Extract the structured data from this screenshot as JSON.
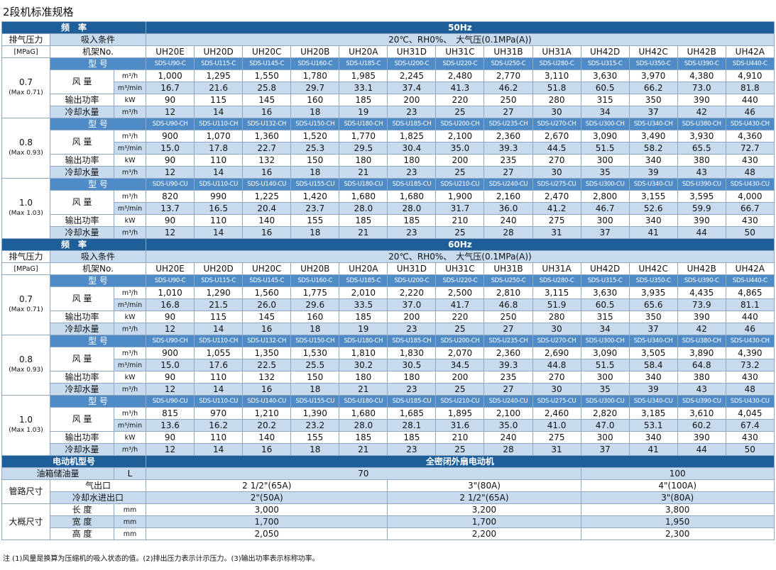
{
  "title": "2段机标准规格",
  "labels": {
    "freq": "频　率",
    "pressure": "排气压力",
    "pressure_unit": "[MPaG]",
    "intake": "吸入条件",
    "frame": "机架No.",
    "model": "型 号",
    "airflow": "风 量",
    "power": "输出功率",
    "water": "冷却水量"
  },
  "units": {
    "m3h": "m³/h",
    "m3min": "m³/min",
    "kw": "kW"
  },
  "intake": "20℃、RH0%、　大气压(0.1MPa(A))",
  "frames": [
    "UH20E",
    "UH20D",
    "UH20C",
    "UH20B",
    "UH20A",
    "UH31D",
    "UH31C",
    "UH31B",
    "UH31A",
    "UH42D",
    "UH42C",
    "UH42B",
    "UH42A"
  ],
  "pressures": [
    {
      "pressure": "0.7",
      "max": "(Max 0.71)",
      "models": [
        "SDS-U90-C",
        "SDS-U115-C",
        "SDS-U145-C",
        "SDS-U160-C",
        "SDS-U185-C",
        "SDS-U200-C",
        "SDS-U220-C",
        "SDS-U250-C",
        "SDS-U280-C",
        "SDS-U315-C",
        "SDS-U350-C",
        "SDS-U390-C",
        "SDS-U440-C"
      ]
    },
    {
      "pressure": "0.8",
      "max": "(Max 0.93)",
      "models": [
        "SDS-U90-CH",
        "SDS-U110-CH",
        "SDS-U132-CH",
        "SDS-U150-CH",
        "SDS-U180-CH",
        "SDS-U185-CH",
        "SDS-U200-CH",
        "SDS-U235-CH",
        "SDS-U270-CH",
        "SDS-U300-CH",
        "SDS-U340-CH",
        "SDS-U380-CH",
        "SDS-U430-CH"
      ]
    },
    {
      "pressure": "1.0",
      "max": "(Max 1.03)",
      "models": [
        "SDS-U90-CU",
        "SDS-U110-CU",
        "SDS-U140-CU",
        "SDS-U155-CU",
        "SDS-U180-CU",
        "SDS-U185-CU",
        "SDS-U210-CU",
        "SDS-U240-CU",
        "SDS-U275-CU",
        "SDS-U300-CU",
        "SDS-U340-CU",
        "SDS-U390-CU",
        "SDS-U430-CU"
      ]
    }
  ],
  "sections": [
    {
      "freq": "50Hz",
      "groups": [
        {
          "m3h": [
            "1,000",
            "1,295",
            "1,550",
            "1,780",
            "1,985",
            "2,245",
            "2,480",
            "2,770",
            "3,110",
            "3,630",
            "3,970",
            "4,380",
            "4,910"
          ],
          "m3min": [
            "16.7",
            "21.6",
            "25.8",
            "29.7",
            "33.1",
            "37.4",
            "41.3",
            "46.2",
            "51.8",
            "60.5",
            "66.2",
            "73.0",
            "81.8"
          ],
          "kw": [
            "90",
            "115",
            "145",
            "160",
            "185",
            "200",
            "220",
            "250",
            "280",
            "315",
            "350",
            "390",
            "440"
          ],
          "water": [
            "12",
            "14",
            "16",
            "18",
            "19",
            "23",
            "25",
            "27",
            "30",
            "34",
            "37",
            "42",
            "46"
          ]
        },
        {
          "m3h": [
            "900",
            "1,070",
            "1,360",
            "1,520",
            "1,770",
            "1,825",
            "2,100",
            "2,360",
            "2,670",
            "3,090",
            "3,490",
            "3,930",
            "4,360"
          ],
          "m3min": [
            "15.0",
            "17.8",
            "22.7",
            "25.3",
            "29.5",
            "30.4",
            "35.0",
            "39.3",
            "44.5",
            "51.5",
            "58.2",
            "65.5",
            "72.7"
          ],
          "kw": [
            "90",
            "110",
            "132",
            "150",
            "180",
            "180",
            "200",
            "235",
            "270",
            "300",
            "340",
            "380",
            "430"
          ],
          "water": [
            "12",
            "14",
            "16",
            "18",
            "21",
            "23",
            "25",
            "27",
            "30",
            "35",
            "39",
            "43",
            "48"
          ]
        },
        {
          "m3h": [
            "820",
            "990",
            "1,225",
            "1,420",
            "1,680",
            "1,680",
            "1,900",
            "2,160",
            "2,470",
            "2,800",
            "3,155",
            "3,595",
            "4,000"
          ],
          "m3min": [
            "13.7",
            "16.5",
            "20.4",
            "23.7",
            "28.0",
            "28.0",
            "31.7",
            "36.0",
            "41.2",
            "46.7",
            "52.6",
            "59.9",
            "66.7"
          ],
          "kw": [
            "90",
            "110",
            "140",
            "155",
            "185",
            "185",
            "210",
            "240",
            "275",
            "300",
            "340",
            "390",
            "430"
          ],
          "water": [
            "12",
            "14",
            "16",
            "18",
            "21",
            "23",
            "25",
            "28",
            "31",
            "37",
            "41",
            "44",
            "50"
          ]
        }
      ]
    },
    {
      "freq": "60Hz",
      "groups": [
        {
          "m3h": [
            "1,010",
            "1,290",
            "1,560",
            "1,775",
            "2,010",
            "2,220",
            "2,500",
            "2,810",
            "3,115",
            "3,630",
            "3,935",
            "4,435",
            "4,865"
          ],
          "m3min": [
            "16.8",
            "21.5",
            "26.0",
            "29.6",
            "33.5",
            "37.0",
            "41.7",
            "46.8",
            "51.9",
            "60.5",
            "65.6",
            "73.9",
            "81.1"
          ],
          "kw": [
            "90",
            "115",
            "145",
            "160",
            "185",
            "200",
            "220",
            "250",
            "280",
            "315",
            "350",
            "390",
            "440"
          ],
          "water": [
            "12",
            "14",
            "16",
            "18",
            "19",
            "23",
            "25",
            "27",
            "30",
            "34",
            "37",
            "42",
            "46"
          ]
        },
        {
          "m3h": [
            "900",
            "1,055",
            "1,350",
            "1,530",
            "1,810",
            "1,830",
            "2,070",
            "2,360",
            "2,690",
            "3,090",
            "3,505",
            "3,890",
            "4,390"
          ],
          "m3min": [
            "15.0",
            "17.6",
            "22.5",
            "25.5",
            "30.2",
            "30.5",
            "34.5",
            "39.3",
            "44.8",
            "51.5",
            "58.4",
            "64.8",
            "73.2"
          ],
          "kw": [
            "90",
            "110",
            "132",
            "150",
            "180",
            "180",
            "200",
            "235",
            "270",
            "300",
            "340",
            "380",
            "430"
          ],
          "water": [
            "12",
            "14",
            "16",
            "18",
            "21",
            "23",
            "25",
            "27",
            "30",
            "35",
            "39",
            "43",
            "48"
          ]
        },
        {
          "m3h": [
            "815",
            "970",
            "1,210",
            "1,390",
            "1,680",
            "1,685",
            "1,895",
            "2,100",
            "2,460",
            "2,820",
            "3,185",
            "3,610",
            "4,045"
          ],
          "m3min": [
            "13.6",
            "16.2",
            "20.2",
            "23.2",
            "28.0",
            "28.1",
            "31.6",
            "35.0",
            "41.0",
            "47.0",
            "53.1",
            "60.2",
            "67.4"
          ],
          "kw": [
            "90",
            "110",
            "140",
            "155",
            "185",
            "185",
            "210",
            "240",
            "275",
            "300",
            "340",
            "390",
            "430"
          ],
          "water": [
            "12",
            "14",
            "16",
            "18",
            "21",
            "23",
            "25",
            "28",
            "31",
            "37",
            "41",
            "44",
            "50"
          ]
        }
      ]
    }
  ],
  "footer": {
    "motor_label": "电动机型号",
    "motor": "全密闭外扇电动机",
    "oil_label": "油箱储油量",
    "oil_unit": "L",
    "oil": [
      "70",
      "100"
    ],
    "pipe_label": "管路尺寸",
    "pipe_rows": [
      {
        "label": "气出口",
        "values": [
          "2 1/2\"(65A)",
          "3\"(80A)",
          "4\"(100A)"
        ]
      },
      {
        "label": "冷却水进出口",
        "values": [
          "2\"(50A)",
          "2 1/2\"(65A)",
          "3\"(80A)"
        ]
      }
    ],
    "size_label": "大概尺寸",
    "size_unit": "mm",
    "size_rows": [
      {
        "label": "长 度",
        "values": [
          "3,000",
          "3,200",
          "3,800"
        ]
      },
      {
        "label": "宽 度",
        "values": [
          "1,700",
          "1,700",
          "1,950"
        ]
      },
      {
        "label": "高 度",
        "values": [
          "2,050",
          "2,200",
          "2,300"
        ]
      }
    ]
  },
  "note": "注 (1)风量是换算为压缩机的吸入状态的值。(2)排出压力表示计示压力。(3)输出功率表示标称功率。"
}
